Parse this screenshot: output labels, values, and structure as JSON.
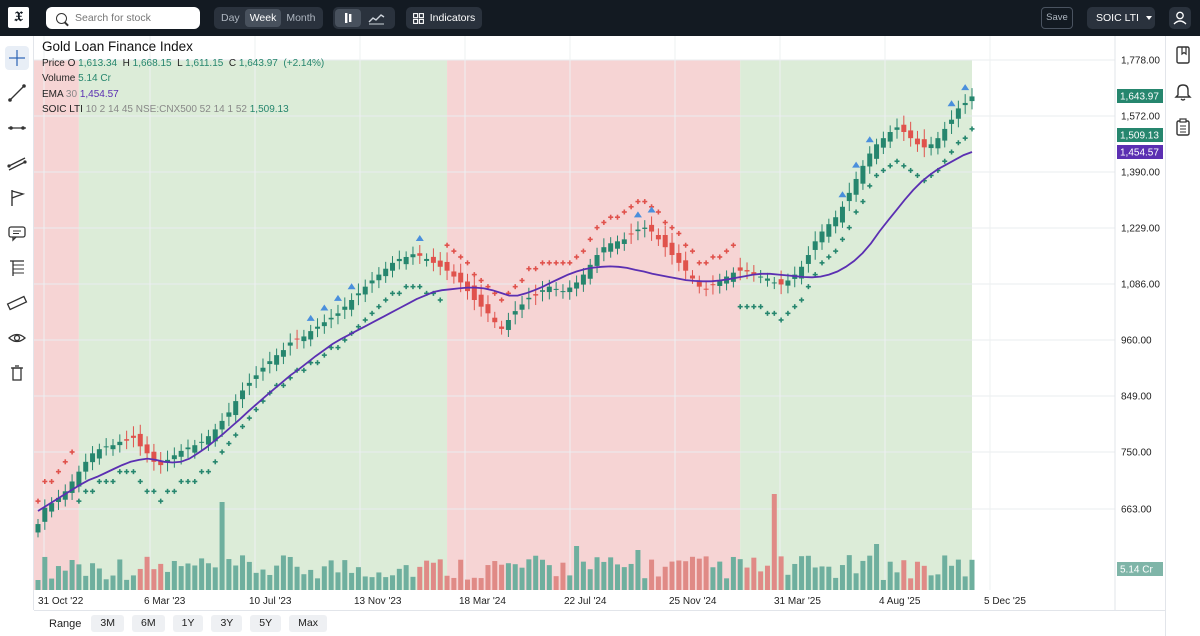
{
  "topbar": {
    "logo": "𝔛",
    "search_placeholder": "Search for stock",
    "intervals": [
      "Day",
      "Week",
      "Month"
    ],
    "active_interval": "Week",
    "indicators_label": "Indicators",
    "save_label": "Save",
    "symbol": "SOIC LTI"
  },
  "legend": {
    "title": "Gold Loan Finance Index",
    "price_label": "Price",
    "o_label": "O",
    "o": "1,613.34",
    "h_label": "H",
    "h": "1,668.15",
    "l_label": "L",
    "l": "1,611.15",
    "c_label": "C",
    "c": "1,643.97",
    "change": "(+2.14%)",
    "volume_label": "Volume",
    "volume": "5.14 Cr",
    "ema_label": "EMA",
    "ema_period": "30",
    "ema_value": "1,454.57",
    "soic_label": "SOIC LTI",
    "soic_params": "10 2 14 45 NSE:CNX500 52 14 1 52",
    "soic_value": "1,509.13"
  },
  "bottombar": {
    "range_label": "Range",
    "ranges": [
      "3M",
      "6M",
      "1Y",
      "3Y",
      "5Y",
      "Max"
    ]
  },
  "colors": {
    "up": "#26866e",
    "down": "#e0524c",
    "ema": "#5b2fb2",
    "green_zone": "#dcecd8",
    "red_zone": "#f6d4d4",
    "signal_blue": "#4a8fdc"
  },
  "chart_data": {
    "type": "candlestick",
    "price_axis_ticks": [
      "1,778.00",
      "1,572.00",
      "1,390.00",
      "1,229.00",
      "1,086.00",
      "960.00",
      "849.00",
      "750.00",
      "663.00"
    ],
    "time_axis_ticks": [
      "31 Oct '22",
      "6 Mar '23",
      "10 Jul '23",
      "13 Nov '23",
      "18 Mar '24",
      "22 Jul '24",
      "25 Nov '24",
      "31 Mar '25",
      "4 Aug '25",
      "5 Dec '25"
    ],
    "last_close_label": "1,643.97",
    "soic_label": "1,509.13",
    "ema_label": "1,454.57",
    "volume_label": "5.14 Cr",
    "close": [
      640,
      665,
      672,
      680,
      690,
      705,
      720,
      735,
      748,
      755,
      760,
      762,
      768,
      770,
      775,
      760,
      748,
      735,
      730,
      738,
      745,
      752,
      758,
      762,
      768,
      778,
      790,
      805,
      820,
      840,
      860,
      875,
      890,
      905,
      918,
      930,
      940,
      955,
      962,
      968,
      980,
      990,
      1000,
      1010,
      1020,
      1035,
      1050,
      1065,
      1080,
      1095,
      1110,
      1125,
      1140,
      1150,
      1155,
      1162,
      1158,
      1150,
      1140,
      1130,
      1120,
      1105,
      1090,
      1070,
      1050,
      1035,
      1020,
      1000,
      985,
      1005,
      1025,
      1040,
      1055,
      1060,
      1072,
      1080,
      1075,
      1070,
      1078,
      1090,
      1110,
      1135,
      1160,
      1180,
      1190,
      1195,
      1200,
      1215,
      1225,
      1230,
      1220,
      1200,
      1180,
      1160,
      1140,
      1120,
      1100,
      1080,
      1075,
      1085,
      1095,
      1105,
      1115,
      1120,
      1118,
      1110,
      1105,
      1100,
      1090,
      1085,
      1095,
      1110,
      1130,
      1160,
      1195,
      1220,
      1240,
      1260,
      1290,
      1330,
      1370,
      1410,
      1450,
      1480,
      1500,
      1520,
      1535,
      1520,
      1500,
      1480,
      1470,
      1480,
      1500,
      1530,
      1560,
      1600,
      1620,
      1644
    ],
    "ema30": [
      660,
      668,
      676,
      684,
      692,
      700,
      707,
      712,
      718,
      724,
      730,
      735,
      738,
      740,
      738,
      735,
      734,
      735,
      740,
      748,
      758,
      770,
      782,
      795,
      808,
      822,
      835,
      848,
      862,
      876,
      890,
      902,
      915,
      928,
      940,
      952,
      962,
      972,
      982,
      992,
      1002,
      1012,
      1022,
      1032,
      1042,
      1052,
      1060,
      1068,
      1072,
      1074,
      1076,
      1078,
      1078,
      1076,
      1072,
      1066,
      1060,
      1060,
      1065,
      1072,
      1080,
      1090,
      1100,
      1110,
      1118,
      1124,
      1128,
      1130,
      1131,
      1130,
      1127,
      1122,
      1118,
      1112,
      1108,
      1104,
      1100,
      1096,
      1094,
      1093,
      1093,
      1095,
      1098,
      1102,
      1106,
      1110,
      1112,
      1112,
      1110,
      1108,
      1106,
      1104,
      1103,
      1105,
      1110,
      1118,
      1130,
      1145,
      1165,
      1190,
      1220,
      1250,
      1280,
      1310,
      1338,
      1362,
      1382,
      1400,
      1415,
      1430,
      1445,
      1455
    ],
    "regimes": [
      {
        "from": "31 Oct '22",
        "to": "12 Dec '22",
        "state": "bearish"
      },
      {
        "from": "12 Dec '22",
        "to": "12 Feb '24",
        "state": "bullish"
      },
      {
        "from": "12 Feb '24",
        "to": "9 Dec '24",
        "state": "bearish"
      },
      {
        "from": "9 Dec '24",
        "to": "27 Oct '25",
        "state": "bullish"
      }
    ]
  }
}
